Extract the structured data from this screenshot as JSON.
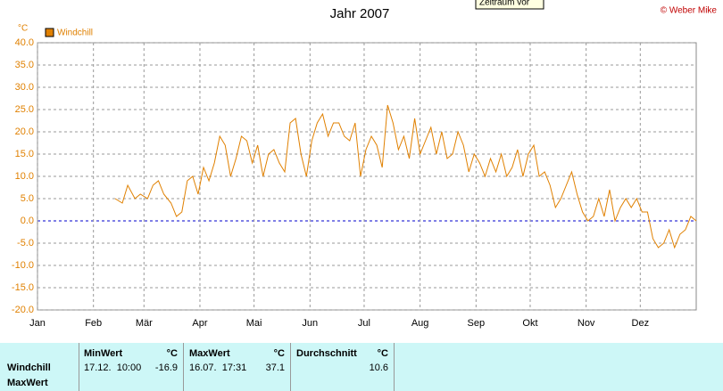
{
  "chart_data": {
    "type": "line",
    "title": "Jahr 2007",
    "y_unit": "°C",
    "copyright": "© Weber Mike",
    "tooltip": "Zeitraum vor",
    "xlim": [
      0,
      365
    ],
    "xticks": [
      {
        "value": 0,
        "label": "Jan"
      },
      {
        "value": 31,
        "label": "Feb"
      },
      {
        "value": 59,
        "label": "Mär"
      },
      {
        "value": 90,
        "label": "Apr"
      },
      {
        "value": 120,
        "label": "Mai"
      },
      {
        "value": 151,
        "label": "Jun"
      },
      {
        "value": 181,
        "label": "Jul"
      },
      {
        "value": 212,
        "label": "Aug"
      },
      {
        "value": 243,
        "label": "Sep"
      },
      {
        "value": 273,
        "label": "Okt"
      },
      {
        "value": 304,
        "label": "Nov"
      },
      {
        "value": 334,
        "label": "Dez"
      }
    ],
    "ylim": [
      -20,
      40
    ],
    "yticks": [
      {
        "value": -20,
        "label": "-20.0"
      },
      {
        "value": -15,
        "label": "-15.0"
      },
      {
        "value": -10,
        "label": "-10.0"
      },
      {
        "value": -5,
        "label": "-5.0"
      },
      {
        "value": 0,
        "label": "0.0"
      },
      {
        "value": 5,
        "label": "5.0"
      },
      {
        "value": 10,
        "label": "10.0"
      },
      {
        "value": 15,
        "label": "15.0"
      },
      {
        "value": 20,
        "label": "20.0"
      },
      {
        "value": 25,
        "label": "25.0"
      },
      {
        "value": 30,
        "label": "30.0"
      },
      {
        "value": 35,
        "label": "35.0"
      },
      {
        "value": 40,
        "label": "40.0"
      }
    ],
    "grid": true,
    "zero_line_color": "#0000cc",
    "x": [
      43,
      47,
      50,
      54,
      57,
      61,
      64,
      67,
      70,
      74,
      77,
      80,
      83,
      86,
      89,
      92,
      95,
      98,
      101,
      104,
      107,
      110,
      113,
      116,
      119,
      122,
      125,
      128,
      131,
      134,
      137,
      140,
      143,
      146,
      149,
      152,
      155,
      158,
      161,
      164,
      167,
      170,
      173,
      176,
      179,
      182,
      185,
      188,
      191,
      194,
      197,
      200,
      203,
      206,
      209,
      212,
      215,
      218,
      221,
      224,
      227,
      230,
      233,
      236,
      239,
      242,
      245,
      248,
      251,
      254,
      257,
      260,
      263,
      266,
      269,
      272,
      275,
      278,
      281,
      284,
      287,
      290,
      293,
      296,
      299,
      302,
      305,
      308,
      311,
      314,
      317,
      320,
      323,
      326,
      329,
      332,
      335,
      338,
      341,
      344,
      347,
      350,
      353,
      356,
      359,
      362,
      365
    ],
    "series": [
      {
        "name": "Windchill",
        "color": "#e08000",
        "values": [
          5,
          4,
          8,
          5,
          6,
          5,
          8,
          9,
          6,
          4,
          1,
          2,
          9,
          10,
          6,
          12,
          9,
          13,
          19,
          17,
          10,
          14,
          19,
          18,
          13,
          17,
          10,
          15,
          16,
          13,
          11,
          22,
          23,
          15,
          10,
          18,
          22,
          24,
          19,
          22,
          22,
          19,
          18,
          22,
          10,
          16,
          19,
          17,
          12,
          26,
          22,
          16,
          19,
          14,
          23,
          15,
          18,
          21,
          15,
          20,
          14,
          15,
          20,
          17,
          11,
          15,
          13,
          10,
          14,
          11,
          15,
          10,
          12,
          16,
          10,
          15,
          17,
          10,
          11,
          8,
          3,
          5,
          8,
          11,
          6,
          2,
          0,
          1,
          5,
          1,
          7,
          0,
          3,
          5,
          3,
          5,
          2,
          2,
          -4,
          -6,
          -5,
          -2,
          -6,
          -3,
          -2,
          1,
          0
        ]
      }
    ]
  },
  "table": {
    "row_labels": [
      "Windchill",
      "MaxWert"
    ],
    "columns": [
      {
        "header": "MinWert",
        "unit": "°C",
        "time": "17.12.  10:00",
        "value": -16.9
      },
      {
        "header": "MaxWert",
        "unit": "°C",
        "time": "16.07.  17:31",
        "value": 37.1
      },
      {
        "header": "Durchschnitt",
        "unit": "°C",
        "value": 10.6
      }
    ]
  }
}
